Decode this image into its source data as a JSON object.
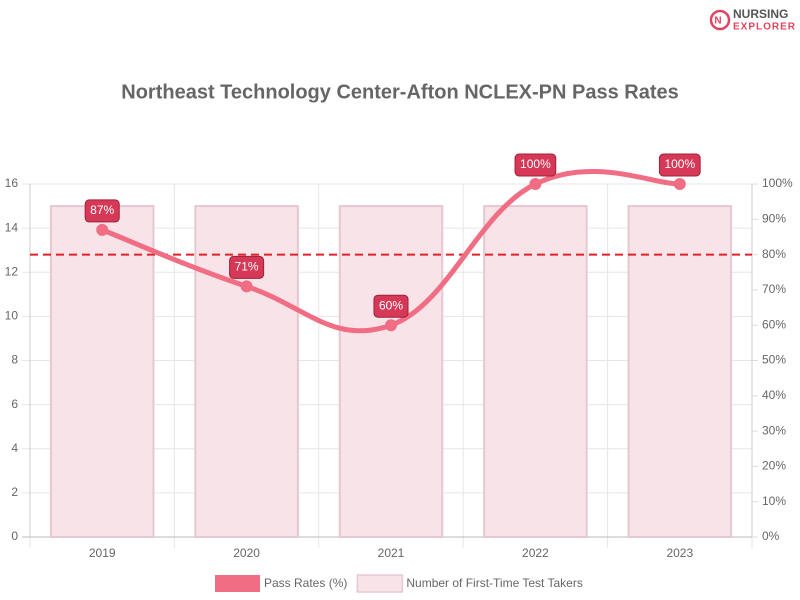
{
  "logo": {
    "line1": "NURSING",
    "line2": "EXPLORER"
  },
  "chart_data": {
    "type": "combo",
    "title": "Northeast Technology Center-Afton NCLEX-PN Pass Rates",
    "categories": [
      "2019",
      "2020",
      "2021",
      "2022",
      "2023"
    ],
    "series": [
      {
        "name": "Number of First-Time Test Takers",
        "type": "bar",
        "color": "#f7e3e8",
        "border_color": "#e6c9d0",
        "values": [
          15,
          15,
          15,
          15,
          15
        ]
      },
      {
        "name": "Pass Rates (%)",
        "type": "line",
        "axis": "y2",
        "color": "#f06d83",
        "values": [
          87,
          71,
          60,
          100,
          100
        ],
        "value_labels": [
          "87%",
          "71%",
          "60%",
          "100%",
          "100%"
        ],
        "label_color": "#d63857"
      }
    ],
    "ylim": [
      0,
      16
    ],
    "yticks": [
      0,
      2,
      4,
      6,
      8,
      10,
      12,
      14,
      16
    ],
    "y2lim": [
      0,
      100
    ],
    "y2ticks": [
      {
        "value": 0,
        "label": "0%"
      },
      {
        "value": 10,
        "label": "10%"
      },
      {
        "value": 20,
        "label": "20%"
      },
      {
        "value": 30,
        "label": "30%"
      },
      {
        "value": 40,
        "label": "40%"
      },
      {
        "value": 50,
        "label": "50%"
      },
      {
        "value": 60,
        "label": "60%"
      },
      {
        "value": 70,
        "label": "70%"
      },
      {
        "value": 80,
        "label": "80%"
      },
      {
        "value": 90,
        "label": "90%"
      },
      {
        "value": 100,
        "label": "100%"
      }
    ],
    "reference_line": {
      "value": 80,
      "axis": "y2",
      "color": "#e0202a"
    },
    "grid": true,
    "legend": "bottom"
  }
}
